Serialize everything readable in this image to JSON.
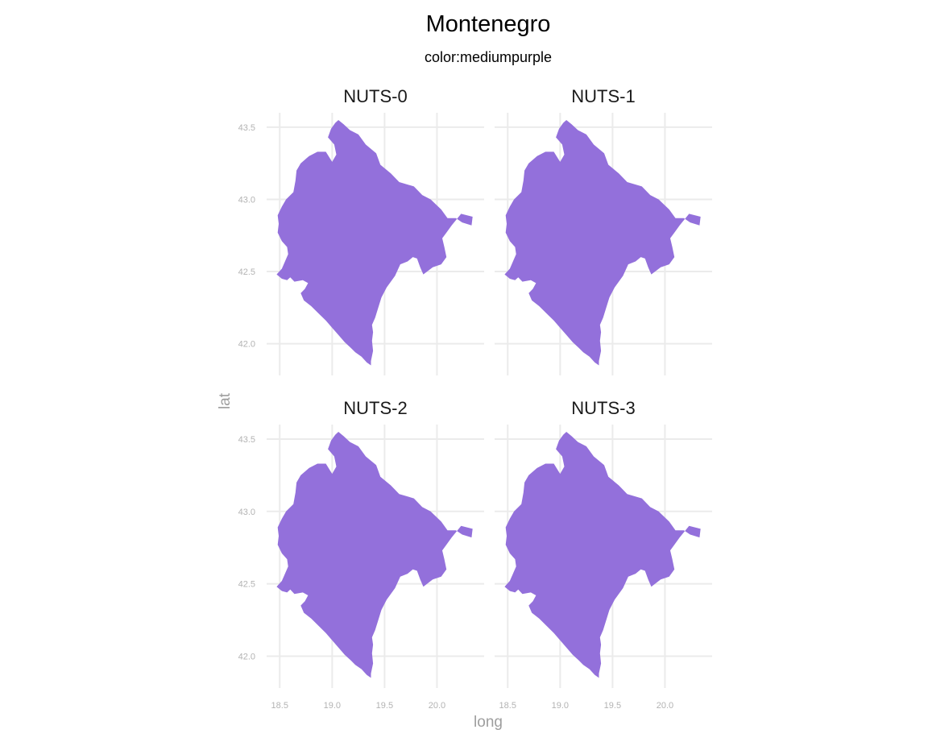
{
  "title": "Montenegro",
  "subtitle": "color:mediumpurple",
  "fill_color": "#9370DB",
  "grid_color": "#EBEBEB",
  "x_axis_title": "long",
  "y_axis_title": "lat",
  "x_ticks": [
    {
      "value": 18.5,
      "label": "18.5"
    },
    {
      "value": 19.0,
      "label": "19.0"
    },
    {
      "value": 19.5,
      "label": "19.5"
    },
    {
      "value": 20.0,
      "label": "20.0"
    }
  ],
  "y_ticks": [
    {
      "value": 42.0,
      "label": "42.0"
    },
    {
      "value": 42.5,
      "label": "42.5"
    },
    {
      "value": 43.0,
      "label": "43.0"
    },
    {
      "value": 43.5,
      "label": "43.5"
    }
  ],
  "x_range": [
    18.375,
    20.45
  ],
  "y_range": [
    41.78,
    43.6
  ],
  "panels": [
    {
      "label": "NUTS-0"
    },
    {
      "label": "NUTS-1"
    },
    {
      "label": "NUTS-2"
    },
    {
      "label": "NUTS-3"
    }
  ]
}
